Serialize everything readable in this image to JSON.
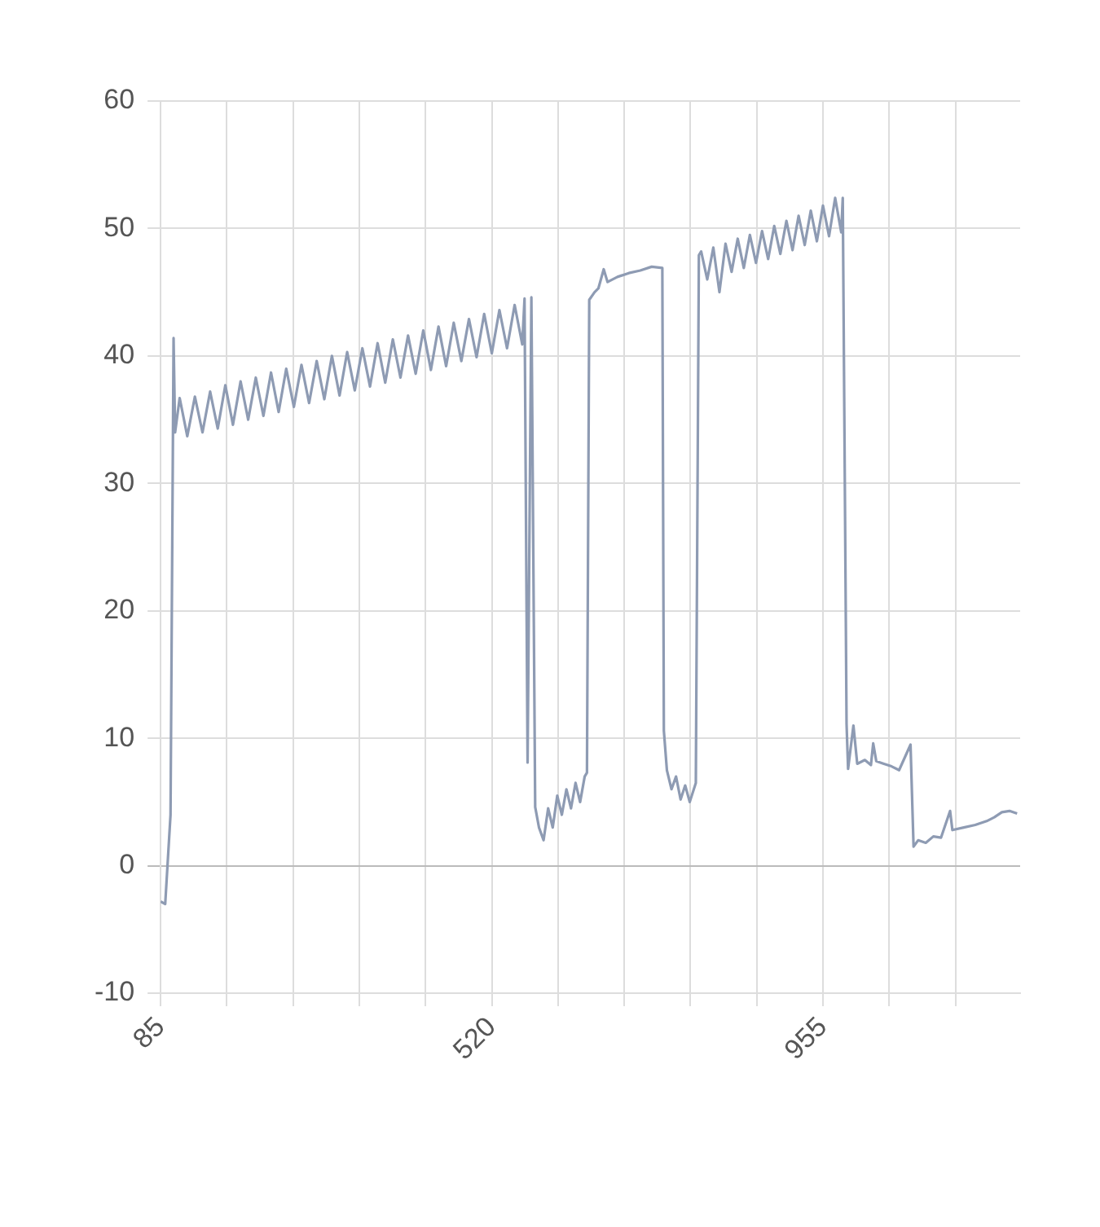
{
  "chart_data": {
    "type": "line",
    "color": "#8e9bb3",
    "grid": true,
    "marker": "none",
    "line_style": "solid",
    "xlim": [
      85,
      1214
    ],
    "xticks": [
      85,
      {
        "value": 172,
        "label": null
      },
      {
        "value": 259,
        "label": null
      },
      {
        "value": 346,
        "label": null
      },
      {
        "value": 433,
        "label": null
      },
      520,
      {
        "value": 607,
        "label": null
      },
      {
        "value": 694,
        "label": null
      },
      {
        "value": 781,
        "label": null
      },
      {
        "value": 868,
        "label": null
      },
      955,
      {
        "value": 1042,
        "label": null
      },
      {
        "value": 1129,
        "label": null
      }
    ],
    "ylim": [
      -10,
      60
    ],
    "yticks": [
      -10,
      0,
      10,
      20,
      30,
      40,
      50,
      60
    ],
    "x": [
      85,
      91,
      98,
      102,
      104,
      110,
      120,
      130,
      140,
      150,
      160,
      170,
      180,
      190,
      200,
      210,
      220,
      230,
      240,
      250,
      260,
      270,
      280,
      290,
      300,
      310,
      320,
      330,
      340,
      350,
      360,
      370,
      380,
      390,
      400,
      410,
      420,
      430,
      440,
      450,
      460,
      470,
      480,
      490,
      500,
      510,
      520,
      530,
      540,
      550,
      560,
      563,
      567,
      572,
      577,
      582,
      588,
      594,
      600,
      606,
      612,
      618,
      624,
      630,
      636,
      642,
      645,
      648,
      655,
      660,
      667,
      672,
      685,
      700,
      715,
      730,
      744,
      746,
      750,
      756,
      762,
      768,
      774,
      780,
      788,
      792,
      795,
      803,
      811,
      819,
      827,
      835,
      843,
      851,
      859,
      867,
      875,
      883,
      891,
      899,
      907,
      915,
      923,
      931,
      939,
      947,
      955,
      963,
      971,
      979,
      981,
      986,
      988,
      995,
      1000,
      1010,
      1018,
      1021,
      1025,
      1035,
      1045,
      1055,
      1070,
      1074,
      1080,
      1090,
      1100,
      1110,
      1122,
      1125,
      1140,
      1155,
      1170,
      1180,
      1190,
      1200,
      1210
    ],
    "values": [
      -2.8,
      -3,
      4,
      41.4,
      34,
      36.7,
      33.7,
      36.8,
      34.0,
      37.2,
      34.3,
      37.7,
      34.6,
      38.0,
      35.0,
      38.3,
      35.3,
      38.7,
      35.6,
      39.0,
      36.0,
      39.3,
      36.3,
      39.6,
      36.6,
      40.0,
      36.9,
      40.3,
      37.3,
      40.6,
      37.6,
      41.0,
      37.9,
      41.3,
      38.3,
      41.6,
      38.6,
      42.0,
      38.9,
      42.3,
      39.2,
      42.6,
      39.6,
      42.9,
      39.9,
      43.3,
      40.2,
      43.6,
      40.6,
      44.0,
      40.9,
      44.5,
      8.1,
      44.6,
      4.6,
      3.0,
      2.0,
      4.5,
      3.0,
      5.5,
      4.0,
      6.0,
      4.5,
      6.5,
      5.0,
      7.0,
      7.3,
      44.4,
      45.0,
      45.3,
      46.8,
      45.8,
      46.2,
      46.5,
      46.7,
      47.0,
      46.9,
      10.6,
      7.5,
      6.0,
      7.0,
      5.2,
      6.3,
      5.0,
      6.5,
      47.9,
      48.2,
      46.0,
      48.5,
      45.0,
      48.8,
      46.6,
      49.2,
      46.9,
      49.5,
      47.3,
      49.8,
      47.6,
      50.2,
      48.0,
      50.6,
      48.3,
      51.0,
      48.7,
      51.4,
      49.0,
      51.8,
      49.4,
      52.4,
      49.7,
      52.4,
      11.1,
      7.6,
      11.0,
      8.0,
      8.3,
      7.9,
      9.6,
      8.2,
      8.0,
      7.8,
      7.5,
      9.5,
      1.5,
      2.0,
      1.8,
      2.3,
      2.2,
      4.3,
      2.8,
      3.0,
      3.2,
      3.5,
      3.8,
      4.2,
      4.3,
      4.1
    ]
  }
}
